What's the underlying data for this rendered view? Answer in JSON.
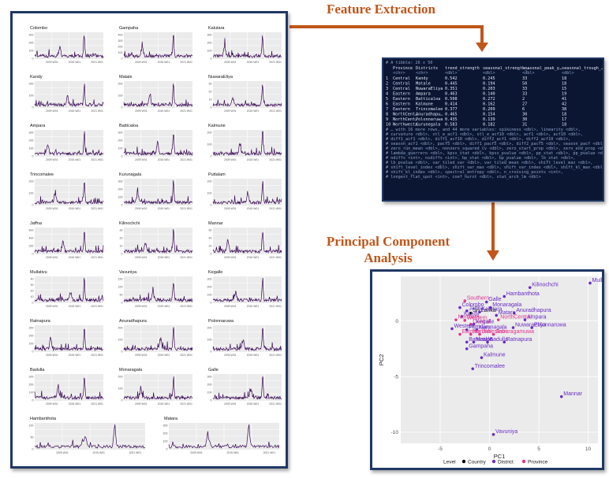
{
  "headings": {
    "feature_extraction": "Feature Extraction",
    "pca_line1": "Principal Component",
    "pca_line2": "Analysis"
  },
  "colors": {
    "heading": "#c0561b",
    "frame": "#1f3864",
    "arrow": "#c0561b",
    "series_line": "#3b0a57",
    "country": "#000000",
    "district": "#6a2cc4",
    "province": "#e0348f"
  },
  "time_series_panels": [
    {
      "name": "Colombo",
      "yticks": [
        "300",
        "200",
        "100",
        "0"
      ],
      "xticks": [
        "2009 W01",
        "2015 W01",
        "2021 W01"
      ]
    },
    {
      "name": "Gampaha",
      "yticks": [
        "400",
        "300",
        "200",
        "100",
        "0"
      ],
      "xticks": [
        "2009 W01",
        "2015 W01",
        "2021 W01"
      ]
    },
    {
      "name": "Kalutara",
      "yticks": [
        "300",
        "200",
        "100",
        "0"
      ],
      "xticks": [
        "2009 W01",
        "2015 W01",
        "2021 W01"
      ]
    },
    {
      "name": "Kandy",
      "yticks": [
        "200",
        "100",
        "0"
      ],
      "xticks": [
        "2009 W01",
        "2015 W01",
        "2021 W01"
      ]
    },
    {
      "name": "Matale",
      "yticks": [
        "200",
        "100",
        "0"
      ],
      "xticks": [
        "2009 W01",
        "2015 W01",
        "2021 W01"
      ]
    },
    {
      "name": "NuwaraEliya",
      "yticks": [
        "30",
        "20",
        "10",
        "0"
      ],
      "xticks": [
        "2009 W01",
        "2015 W01",
        "2021 W01"
      ]
    },
    {
      "name": "Ampara",
      "yticks": [
        "300",
        "200",
        "100",
        "0"
      ],
      "xticks": [
        "2009 W01",
        "2015 W01",
        "2021 W01"
      ]
    },
    {
      "name": "Batticaloa",
      "yticks": [
        "300",
        "200",
        "100",
        "0"
      ],
      "xticks": [
        "2009 W01",
        "2015 W01",
        "2021 W01"
      ]
    },
    {
      "name": "Kalmune",
      "yticks": [
        "200",
        "100",
        "0"
      ],
      "xticks": [
        "2009 W01",
        "2015 W01",
        "2021 W01"
      ]
    },
    {
      "name": "Trincomalee",
      "yticks": [
        "200",
        "100",
        "0"
      ],
      "xticks": [
        "2009 W01",
        "2015 W01",
        "2021 W01"
      ]
    },
    {
      "name": "Kurunagala",
      "yticks": [
        "300",
        "200",
        "100",
        "0"
      ],
      "xticks": [
        "2009 W01",
        "2015 W01",
        "2021 W01"
      ]
    },
    {
      "name": "Puttalam",
      "yticks": [
        "200",
        "100",
        "0"
      ],
      "xticks": [
        "2009 W01",
        "2015 W01",
        "2021 W01"
      ]
    },
    {
      "name": "Jaffna",
      "yticks": [
        "600",
        "400",
        "200",
        "0"
      ],
      "xticks": [
        "2009 W01",
        "2015 W01",
        "2021 W01"
      ]
    },
    {
      "name": "Kilinochchi",
      "yticks": [
        "30",
        "20",
        "10",
        "0"
      ],
      "xticks": [
        "2009 W01",
        "2015 W01",
        "2021 W01"
      ]
    },
    {
      "name": "Mannar",
      "yticks": [
        "60",
        "40",
        "20",
        "0"
      ],
      "xticks": [
        "2009 W01",
        "2015 W01",
        "2021 W01"
      ]
    },
    {
      "name": "Mullativu",
      "yticks": [
        "40",
        "30",
        "20",
        "10",
        "0"
      ],
      "xticks": [
        "2009 W01",
        "2015 W01",
        "2021 W01"
      ]
    },
    {
      "name": "Vavuniya",
      "yticks": [
        "150",
        "100",
        "50",
        "0"
      ],
      "xticks": [
        "2009 W01",
        "2015 W01",
        "2021 W01"
      ]
    },
    {
      "name": "Kegalle",
      "yticks": [
        "300",
        "200",
        "100",
        "0"
      ],
      "xticks": [
        "2009 W01",
        "2015 W01",
        "2021 W01"
      ]
    },
    {
      "name": "Ratnapura",
      "yticks": [
        "300",
        "200",
        "100",
        "0"
      ],
      "xticks": [
        "2009 W01",
        "2015 W01",
        "2021 W01"
      ]
    },
    {
      "name": "Anuradhapura",
      "yticks": [
        "200",
        "100",
        "0"
      ],
      "xticks": [
        "2009 W01",
        "2015 W01",
        "2021 W01"
      ]
    },
    {
      "name": "Polonnaruwa",
      "yticks": [
        "200",
        "100",
        "0"
      ],
      "xticks": [
        "2009 W01",
        "2015 W01",
        "2021 W01"
      ]
    },
    {
      "name": "Badulla",
      "yticks": [
        "300",
        "200",
        "100",
        "0"
      ],
      "xticks": [
        "2009 W01",
        "2015 W01",
        "2021 W01"
      ]
    },
    {
      "name": "Monaragala",
      "yticks": [
        "200",
        "100",
        "0"
      ],
      "xticks": [
        "2009 W01",
        "2015 W01",
        "2021 W01"
      ]
    },
    {
      "name": "Galle",
      "yticks": [
        "300",
        "200",
        "100",
        "0"
      ],
      "xticks": [
        "2009 W01",
        "2015 W01",
        "2021 W01"
      ]
    },
    {
      "name": "Hambanthota",
      "yticks": [
        "100",
        "50",
        "0"
      ],
      "xticks": [
        "2009 W01",
        "2015 W01",
        "2021 W01"
      ]
    },
    {
      "name": "Matara",
      "yticks": [
        "300",
        "200",
        "100",
        "0"
      ],
      "xticks": [
        "2009 W01",
        "2015 W01",
        "2021 W01"
      ]
    }
  ],
  "console": {
    "header": "# A tibble: 26 x 50",
    "columns": [
      "Province",
      "Districts",
      "trend_strength",
      "seasonal_strength_…",
      "seasonal_peak_y…",
      "seasonal_trough_…"
    ],
    "types": [
      "<chr>",
      "<chr>",
      "<dbl>",
      "<dbl>",
      "<dbl>",
      "<dbl>"
    ],
    "rows": [
      [
        "1",
        "Central",
        "Kandy",
        "0.542",
        "0.245",
        "33",
        "18"
      ],
      [
        "2",
        "Central",
        "Matale",
        "0.445",
        "0.194",
        "50",
        "18"
      ],
      [
        "3",
        "Central",
        "NuwaraEliya",
        "0.351",
        "0.203",
        "33",
        "15"
      ],
      [
        "4",
        "Eastern",
        "Ampara",
        "0.463",
        "0.140",
        "33",
        "19"
      ],
      [
        "5",
        "Eastern",
        "Batticaloa",
        "0.508",
        "0.272",
        "2",
        "41"
      ],
      [
        "6",
        "Eastern",
        "Kalmune",
        "0.414",
        "0.162",
        "27",
        "42"
      ],
      [
        "7",
        "Eastern",
        "Trincomalee",
        "0.377",
        "0.209",
        "6",
        "38"
      ],
      [
        "8",
        "NorthCent…",
        "Anuradhapu…",
        "0.465",
        "0.154",
        "30",
        "18"
      ],
      [
        "9",
        "NorthCent…",
        "Polonnaruwa",
        "0.435",
        "0.139",
        "30",
        "17"
      ],
      [
        "10",
        "Northwest…",
        "Kurunegala",
        "0.583",
        "0.182",
        "31",
        "18"
      ]
    ],
    "footer": [
      "# … with 16 more rows, and 44 more variables: spikiness <dbl>, linearity <dbl>,",
      "#   curvature <dbl>, stl_e_acf1 <dbl>, stl_e_acf10 <dbl>, acf1 <dbl>, acf10 <dbl>,",
      "#   diff1_acf1 <dbl>, diff1_acf10 <dbl>, diff2_acf1 <dbl>, diff2_acf10 <dbl>,",
      "#   season_acf1 <dbl>, pacf5 <dbl>, diff1_pacf5 <dbl>, diff2_pacf5 <dbl>, season_pacf <dbl>,",
      "#   zero_run_mean <dbl>, nonzero_squared_cv <dbl>, zero_start_prop <dbl>, zero_end_prop <dbl>,",
      "#   lambda_guerrero <dbl>, kpss_stat <dbl>, kpss_pvalue <dbl>, pp_stat <dbl>, pp_pvalue <dbl>,",
      "#   ndiffs <int>, nsdiffs <int>, bp_stat <dbl>, bp_pvalue <dbl>, lb_stat <dbl>,",
      "#   lb_pvalue <dbl>, var_tiled_var <dbl>, var_tiled_mean <dbl>, shift_level_max <dbl>,",
      "#   shift_level_index <dbl>, shift_var_max <dbl>, shift_var_index <dbl>, shift_kl_max <dbl>,",
      "#   shift_kl_index <dbl>, spectral_entropy <dbl>, n_crossing_points <int>,",
      "#   longest_flat_spot <int>, coef_hurst <dbl>, stat_arch_lm <dbl>"
    ]
  },
  "chart_data": {
    "type": "scatter",
    "xlabel": "PC1",
    "ylabel": "PC2",
    "xlim": [
      -9,
      11
    ],
    "ylim": [
      -11,
      4
    ],
    "xticks": [
      -5,
      0,
      5,
      10
    ],
    "yticks": [
      0,
      -5,
      -10
    ],
    "grid": true,
    "legend": {
      "title": "Level",
      "position": "bottom",
      "entries": [
        "Country",
        "District",
        "Province"
      ]
    },
    "points": [
      {
        "label": "Mullaitivu",
        "x": 10.2,
        "y": 3.4,
        "level": "District"
      },
      {
        "label": "Kilinochchi",
        "x": 4.1,
        "y": 3.0,
        "level": "District"
      },
      {
        "label": "Hambanthota",
        "x": 1.5,
        "y": 2.2,
        "level": "District"
      },
      {
        "label": "Southern",
        "x": -2.5,
        "y": 1.8,
        "level": "Province"
      },
      {
        "label": "Galle",
        "x": -0.3,
        "y": 1.7,
        "level": "District"
      },
      {
        "label": "Colombo",
        "x": -3.0,
        "y": 1.2,
        "level": "District"
      },
      {
        "label": "Monaragala",
        "x": 0.1,
        "y": 1.2,
        "level": "District"
      },
      {
        "label": "Sri Lanka",
        "x": -1.9,
        "y": 0.7,
        "level": "Country"
      },
      {
        "label": "Jaffna",
        "x": -2.3,
        "y": 0.9,
        "level": "District"
      },
      {
        "label": "Kalutara",
        "x": -1.0,
        "y": 0.8,
        "level": "District"
      },
      {
        "label": "Anuradhapura",
        "x": 2.5,
        "y": 0.7,
        "level": "District"
      },
      {
        "label": "Matara",
        "x": 0.7,
        "y": 0.5,
        "level": "District"
      },
      {
        "label": "Kandy",
        "x": -2.8,
        "y": 0.4,
        "level": "District"
      },
      {
        "label": "Northern",
        "x": -3.4,
        "y": 0.1,
        "level": "Province"
      },
      {
        "label": "Western",
        "x": -2.5,
        "y": 0.05,
        "level": "Province"
      },
      {
        "label": "NorthCentral",
        "x": 0.9,
        "y": 0.1,
        "level": "Province"
      },
      {
        "label": "Ampara",
        "x": 3.6,
        "y": 0.1,
        "level": "District"
      },
      {
        "label": "Central",
        "x": -1.9,
        "y": -0.3,
        "level": "Province"
      },
      {
        "label": "Kegalle",
        "x": -1.6,
        "y": -0.3,
        "level": "District"
      },
      {
        "label": "NuwaraEliya",
        "x": 2.4,
        "y": -0.6,
        "level": "District"
      },
      {
        "label": "Polonnaruwa",
        "x": 4.3,
        "y": -0.6,
        "level": "District"
      },
      {
        "label": "Western",
        "x": -3.8,
        "y": -0.7,
        "level": "District"
      },
      {
        "label": "Puttalam",
        "x": -2.3,
        "y": -0.8,
        "level": "District"
      },
      {
        "label": "Kurunagala",
        "x": -1.3,
        "y": -0.8,
        "level": "District"
      },
      {
        "label": "Eastern",
        "x": -3.0,
        "y": -1.2,
        "level": "Province"
      },
      {
        "label": "NorthWestern",
        "x": -1.9,
        "y": -1.2,
        "level": "Province"
      },
      {
        "label": "Uva",
        "x": -1.0,
        "y": -1.2,
        "level": "Province"
      },
      {
        "label": "Sabaragamuwa",
        "x": 0.4,
        "y": -1.2,
        "level": "Province"
      },
      {
        "label": "Batticaloa",
        "x": -2.3,
        "y": -1.9,
        "level": "District"
      },
      {
        "label": "Matale",
        "x": -1.6,
        "y": -1.9,
        "level": "District"
      },
      {
        "label": "Badulla",
        "x": -0.2,
        "y": -1.9,
        "level": "District"
      },
      {
        "label": "Ratnapura",
        "x": 1.5,
        "y": -1.9,
        "level": "District"
      },
      {
        "label": "Gampaha",
        "x": -2.3,
        "y": -2.5,
        "level": "District"
      },
      {
        "label": "Kalmune",
        "x": -0.8,
        "y": -3.3,
        "level": "District"
      },
      {
        "label": "Trincomalee",
        "x": -1.7,
        "y": -4.3,
        "level": "District"
      },
      {
        "label": "Mannar",
        "x": 7.3,
        "y": -6.8,
        "level": "District"
      },
      {
        "label": "Vavuniya",
        "x": 0.4,
        "y": -10.2,
        "level": "District"
      }
    ]
  }
}
